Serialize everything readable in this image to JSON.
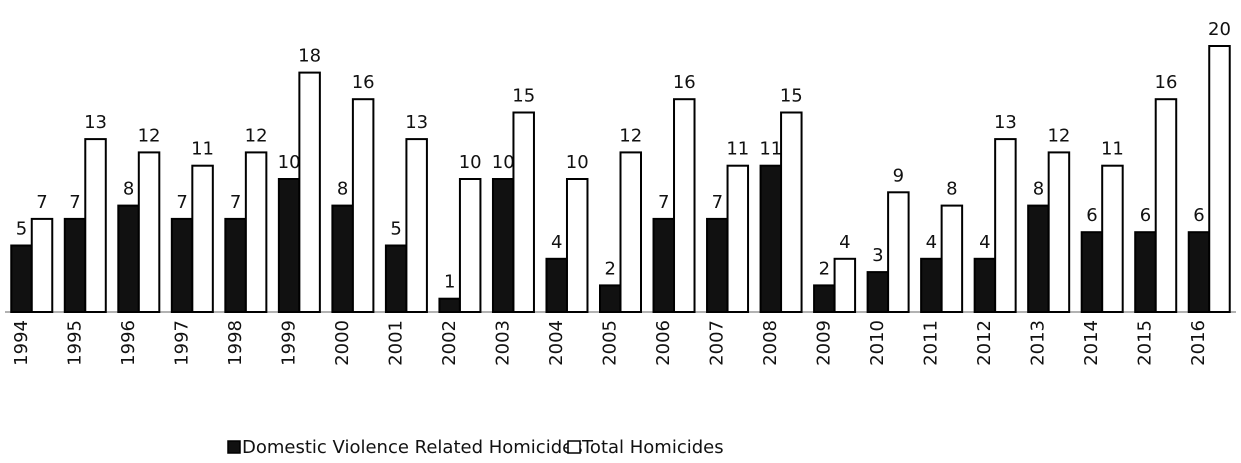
{
  "chart_data": {
    "type": "bar",
    "categories": [
      "1994",
      "1995",
      "1996",
      "1997",
      "1998",
      "1999",
      "2000",
      "2001",
      "2002",
      "2003",
      "2004",
      "2005",
      "2006",
      "2007",
      "2008",
      "2009",
      "2010",
      "2011",
      "2012",
      "2013",
      "2014",
      "2015",
      "2016"
    ],
    "series": [
      {
        "name": "Domestic Violence Related Homicides",
        "color": "#111111",
        "values": [
          5,
          7,
          8,
          7,
          7,
          10,
          8,
          5,
          1,
          10,
          4,
          2,
          7,
          7,
          11,
          2,
          3,
          4,
          4,
          8,
          6,
          6,
          6
        ]
      },
      {
        "name": "Total Homicides",
        "color": "#ffffff",
        "values": [
          7,
          13,
          12,
          11,
          12,
          18,
          16,
          13,
          10,
          15,
          10,
          12,
          16,
          11,
          15,
          4,
          9,
          8,
          13,
          12,
          11,
          16,
          20
        ]
      }
    ],
    "legend": "bottom"
  }
}
